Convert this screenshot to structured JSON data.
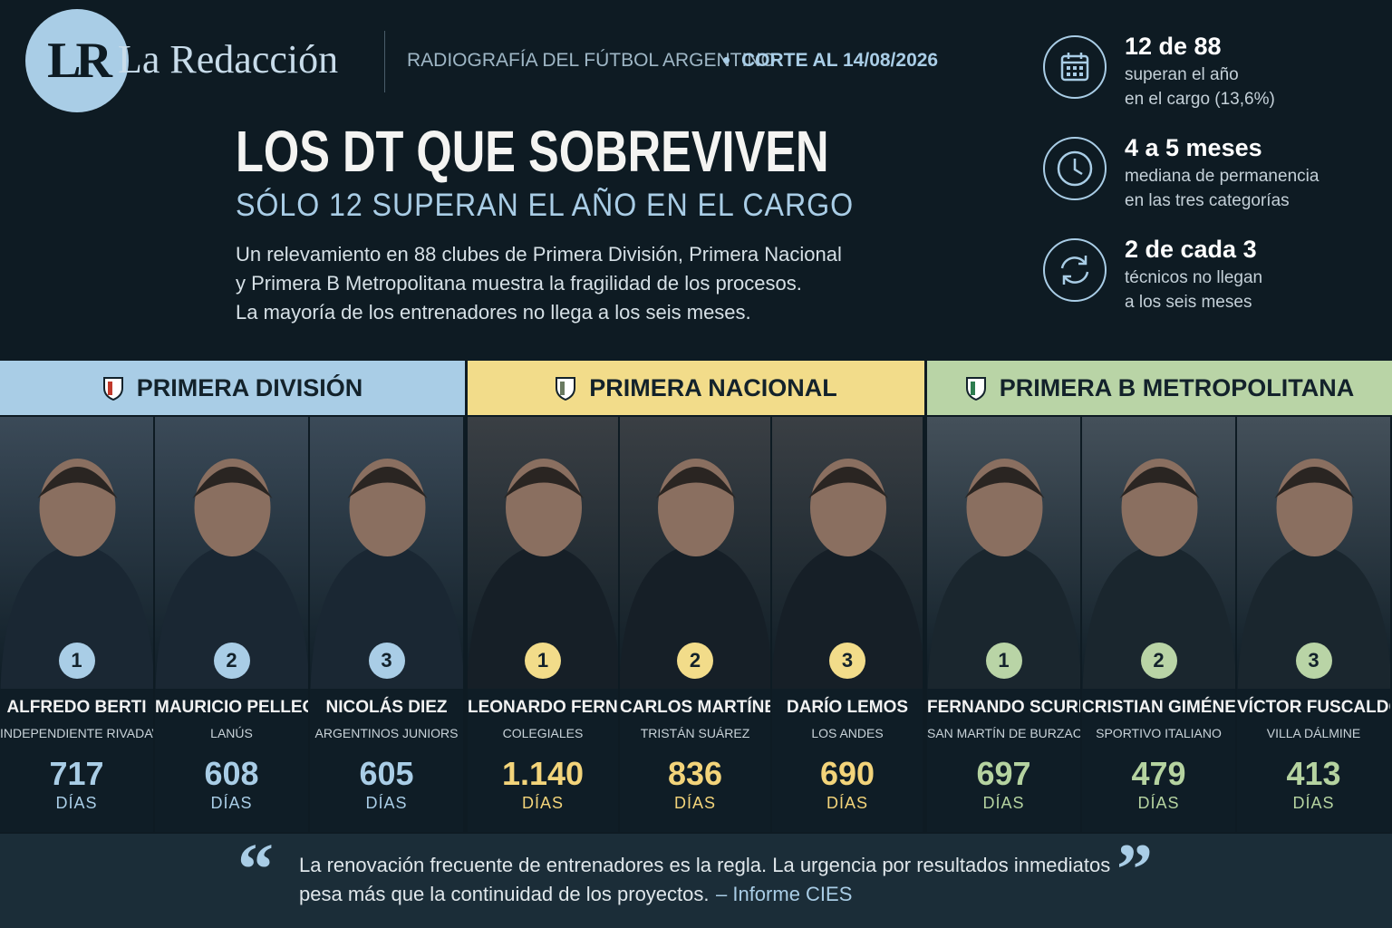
{
  "header": {
    "logo_initials": "LR",
    "brand": "La Redacción",
    "kicker": "RADIOGRAFÍA DEL FÚTBOL ARGENTINO",
    "date": "CORTE AL 14/08/2026"
  },
  "title": "LOS DT QUE SOBREVIVEN",
  "subtitle": "SÓLO 12 SUPERAN EL AÑO EN EL CARGO",
  "intro": [
    "Un relevamiento en 88 clubes de Primera División, Primera Nacional",
    "y Primera B Metropolitana muestra la fragilidad de los procesos.",
    "La mayoría de los entrenadores no llega a los seis meses."
  ],
  "stats": [
    {
      "headline": "12 de 88",
      "lines": [
        "superan el año",
        "en el cargo (13,6%)"
      ]
    },
    {
      "headline": "4 a 5 meses",
      "lines": [
        "mediana de permanencia",
        "en las tres categorías"
      ]
    },
    {
      "headline": "2 de cada 3",
      "lines": [
        "técnicos no llegan",
        "a los seis meses"
      ]
    }
  ],
  "divisions": [
    {
      "name": "PRIMERA DIVISIÓN",
      "coaches": [
        {
          "rank": "1",
          "name": "ALFREDO BERTI",
          "club": "INDEPENDIENTE RIVADAVIA",
          "days": "717",
          "unit": "DÍAS"
        },
        {
          "rank": "2",
          "name": "MAURICIO PELLEGRINO",
          "club": "LANÚS",
          "days": "608",
          "unit": "DÍAS"
        },
        {
          "rank": "3",
          "name": "NICOLÁS DIEZ",
          "club": "ARGENTINOS JUNIORS",
          "days": "605",
          "unit": "DÍAS"
        }
      ]
    },
    {
      "name": "PRIMERA NACIONAL",
      "coaches": [
        {
          "rank": "1",
          "name": "LEONARDO FERNÁNDEZ",
          "club": "COLEGIALES",
          "days": "1.140",
          "unit": "DÍAS"
        },
        {
          "rank": "2",
          "name": "CARLOS MARTÍNEZ",
          "club": "TRISTÁN SUÁREZ",
          "days": "836",
          "unit": "DÍAS"
        },
        {
          "rank": "3",
          "name": "DARÍO LEMOS",
          "club": "LOS ANDES",
          "days": "690",
          "unit": "DÍAS"
        }
      ]
    },
    {
      "name": "PRIMERA B METROPOLITANA",
      "coaches": [
        {
          "rank": "1",
          "name": "FERNANDO SCURNIK",
          "club": "SAN MARTÍN DE BURZACO",
          "days": "697",
          "unit": "DÍAS"
        },
        {
          "rank": "2",
          "name": "CRISTIAN GIMÉNEZ",
          "club": "SPORTIVO ITALIANO",
          "days": "479",
          "unit": "DÍAS"
        },
        {
          "rank": "3",
          "name": "VÍCTOR FUSCALDO",
          "club": "VILLA DÁLMINE",
          "days": "413",
          "unit": "DÍAS"
        }
      ]
    }
  ],
  "quote": {
    "open_mark": "“",
    "lines": [
      "La renovación frecuente de entrenadores es la regla. La urgencia por resultados inmediatos",
      "pesa más que la continuidad de los proyectos."
    ],
    "source": "– Informe CIES",
    "close_mark": "”"
  }
}
